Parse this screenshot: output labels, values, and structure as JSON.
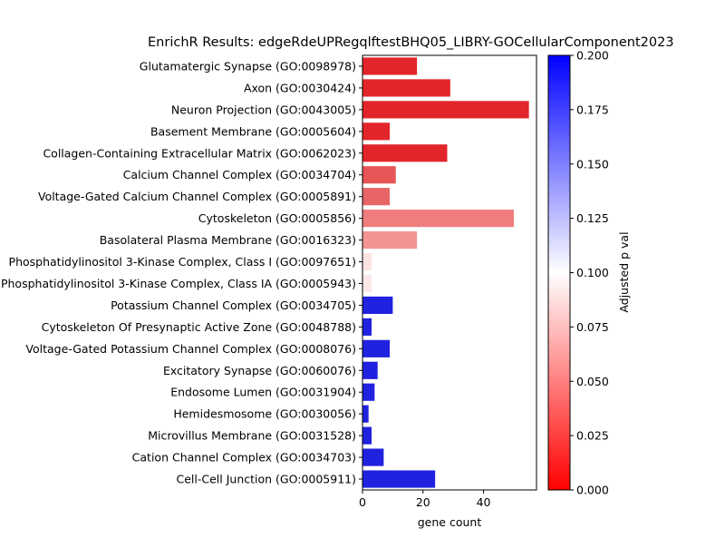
{
  "chart_data": {
    "type": "bar",
    "orientation": "horizontal",
    "title": "EnrichR Results: edgeRdeUPRegqlftestBHQ05_LIBRY-GOCellularComponent2023",
    "xlabel": "gene count",
    "ylabel": "",
    "xlim": [
      0,
      57.5
    ],
    "x_ticks": [
      0,
      20,
      40
    ],
    "grid": false,
    "categories": [
      "Glutamatergic Synapse (GO:0098978)",
      "Axon (GO:0030424)",
      "Neuron Projection (GO:0043005)",
      "Basement Membrane (GO:0005604)",
      "Collagen-Containing Extracellular Matrix (GO:0062023)",
      "Calcium Channel Complex (GO:0034704)",
      "Voltage-Gated Calcium Channel Complex (GO:0005891)",
      "Cytoskeleton (GO:0005856)",
      "Basolateral Plasma Membrane (GO:0016323)",
      "Phosphatidylinositol 3-Kinase Complex, Class I (GO:0097651)",
      "Phosphatidylinositol 3-Kinase Complex, Class IA (GO:0005943)",
      "Potassium Channel Complex (GO:0034705)",
      "Cytoskeleton Of Presynaptic Active Zone (GO:0048788)",
      "Voltage-Gated Potassium Channel Complex (GO:0008076)",
      "Excitatory Synapse (GO:0060076)",
      "Endosome Lumen (GO:0031904)",
      "Hemidesmosome (GO:0030056)",
      "Microvillus Membrane (GO:0031528)",
      "Cation Channel Complex (GO:0034703)",
      "Cell-Cell Junction (GO:0005911)"
    ],
    "values": [
      18,
      29,
      55,
      9,
      28,
      11,
      9,
      50,
      18,
      3,
      3,
      10,
      3,
      9,
      5,
      4,
      2,
      3,
      7,
      24
    ],
    "bar_colors": [
      "#e2252a",
      "#e2252a",
      "#e2252a",
      "#e2252a",
      "#e2252a",
      "#e85557",
      "#e86567",
      "#ef7d7e",
      "#f29394",
      "#fce3e3",
      "#fce8e8",
      "#2121e0",
      "#2121e0",
      "#2121e0",
      "#2121e0",
      "#2121e0",
      "#2121e0",
      "#2121e0",
      "#2121e0",
      "#2121e0"
    ],
    "colorbar": {
      "label": "Adjusted p val",
      "range": [
        0,
        0.2
      ],
      "ticks": [
        "0.000",
        "0.025",
        "0.050",
        "0.075",
        "0.100",
        "0.125",
        "0.150",
        "0.175",
        "0.200"
      ],
      "colors": [
        "#ff0000",
        "#ffffff",
        "#0000ff"
      ]
    }
  }
}
